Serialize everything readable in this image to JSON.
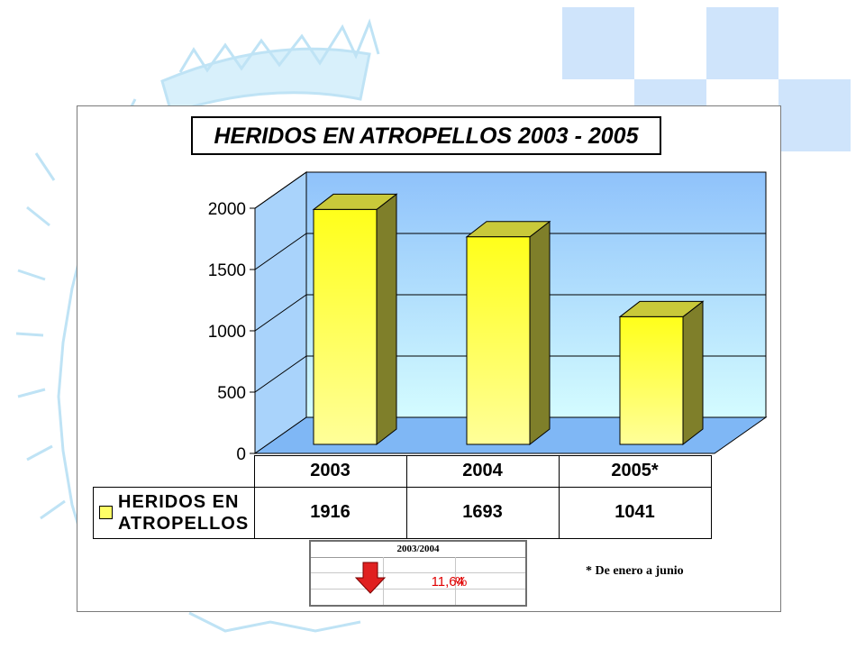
{
  "chart_data": {
    "type": "bar",
    "title": "HERIDOS EN ATROPELLOS  2003 - 2005",
    "categories": [
      "2003",
      "2004",
      "2005*"
    ],
    "series": [
      {
        "name": "HERIDOS EN ATROPELLOS",
        "values": [
          1916,
          1693,
          1041
        ]
      }
    ],
    "ylim": [
      0,
      2000
    ],
    "yticks": [
      "0",
      "500",
      "1000",
      "1500",
      "2000"
    ],
    "grid": true,
    "legend": "data-table",
    "data_table": {
      "legend_label": "HERIDOS EN ATROPELLOS",
      "headers": [
        "2003",
        "2004",
        "2005*"
      ],
      "values": [
        "1916",
        "1693",
        "1041"
      ]
    }
  },
  "variation": {
    "header": "2003/2004",
    "value": "11,64",
    "unit": "%",
    "direction": "down",
    "arrow_color": "#e02020"
  },
  "footnote": "* De enero a junio",
  "colors": {
    "bar_front": "#ffff66",
    "bar_side": "#7f7f2a",
    "bar_top": "#c9c93a",
    "wall_top": "#8fc2fb",
    "wall_bottom": "#d4fcff",
    "floor": "#7fb7f5",
    "decoration": "#cfe4fb"
  }
}
